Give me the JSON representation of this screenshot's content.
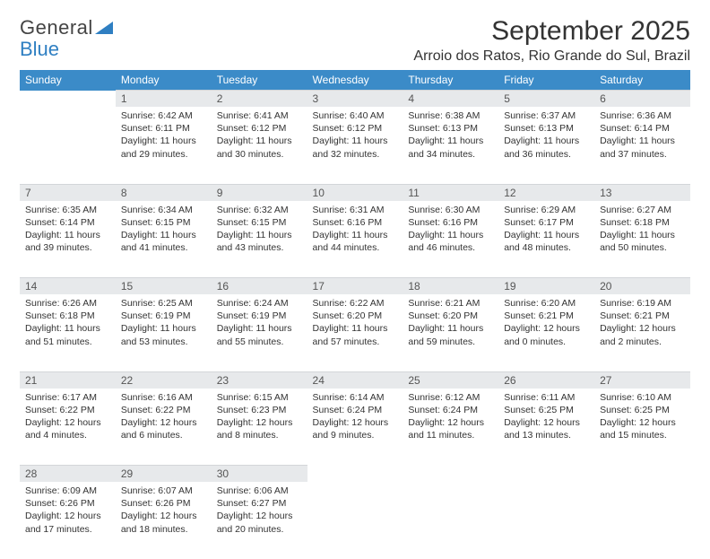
{
  "logo": {
    "text1": "General",
    "text2": "Blue"
  },
  "title": "September 2025",
  "location": "Arroio dos Ratos, Rio Grande do Sul, Brazil",
  "colors": {
    "header_bg": "#3b8bc8",
    "header_text": "#ffffff",
    "daynum_bg": "#e7e9eb",
    "daynum_text": "#555555",
    "body_text": "#333333",
    "logo_gray": "#444444",
    "logo_blue": "#2f7fc2",
    "page_bg": "#ffffff"
  },
  "fonts": {
    "title_size_pt": 22,
    "location_size_pt": 12,
    "header_size_pt": 9,
    "daynum_size_pt": 9,
    "cell_size_pt": 8
  },
  "weekdays": [
    "Sunday",
    "Monday",
    "Tuesday",
    "Wednesday",
    "Thursday",
    "Friday",
    "Saturday"
  ],
  "weeks": [
    [
      null,
      {
        "n": "1",
        "sunrise": "6:42 AM",
        "sunset": "6:11 PM",
        "daylight": "11 hours and 29 minutes."
      },
      {
        "n": "2",
        "sunrise": "6:41 AM",
        "sunset": "6:12 PM",
        "daylight": "11 hours and 30 minutes."
      },
      {
        "n": "3",
        "sunrise": "6:40 AM",
        "sunset": "6:12 PM",
        "daylight": "11 hours and 32 minutes."
      },
      {
        "n": "4",
        "sunrise": "6:38 AM",
        "sunset": "6:13 PM",
        "daylight": "11 hours and 34 minutes."
      },
      {
        "n": "5",
        "sunrise": "6:37 AM",
        "sunset": "6:13 PM",
        "daylight": "11 hours and 36 minutes."
      },
      {
        "n": "6",
        "sunrise": "6:36 AM",
        "sunset": "6:14 PM",
        "daylight": "11 hours and 37 minutes."
      }
    ],
    [
      {
        "n": "7",
        "sunrise": "6:35 AM",
        "sunset": "6:14 PM",
        "daylight": "11 hours and 39 minutes."
      },
      {
        "n": "8",
        "sunrise": "6:34 AM",
        "sunset": "6:15 PM",
        "daylight": "11 hours and 41 minutes."
      },
      {
        "n": "9",
        "sunrise": "6:32 AM",
        "sunset": "6:15 PM",
        "daylight": "11 hours and 43 minutes."
      },
      {
        "n": "10",
        "sunrise": "6:31 AM",
        "sunset": "6:16 PM",
        "daylight": "11 hours and 44 minutes."
      },
      {
        "n": "11",
        "sunrise": "6:30 AM",
        "sunset": "6:16 PM",
        "daylight": "11 hours and 46 minutes."
      },
      {
        "n": "12",
        "sunrise": "6:29 AM",
        "sunset": "6:17 PM",
        "daylight": "11 hours and 48 minutes."
      },
      {
        "n": "13",
        "sunrise": "6:27 AM",
        "sunset": "6:18 PM",
        "daylight": "11 hours and 50 minutes."
      }
    ],
    [
      {
        "n": "14",
        "sunrise": "6:26 AM",
        "sunset": "6:18 PM",
        "daylight": "11 hours and 51 minutes."
      },
      {
        "n": "15",
        "sunrise": "6:25 AM",
        "sunset": "6:19 PM",
        "daylight": "11 hours and 53 minutes."
      },
      {
        "n": "16",
        "sunrise": "6:24 AM",
        "sunset": "6:19 PM",
        "daylight": "11 hours and 55 minutes."
      },
      {
        "n": "17",
        "sunrise": "6:22 AM",
        "sunset": "6:20 PM",
        "daylight": "11 hours and 57 minutes."
      },
      {
        "n": "18",
        "sunrise": "6:21 AM",
        "sunset": "6:20 PM",
        "daylight": "11 hours and 59 minutes."
      },
      {
        "n": "19",
        "sunrise": "6:20 AM",
        "sunset": "6:21 PM",
        "daylight": "12 hours and 0 minutes."
      },
      {
        "n": "20",
        "sunrise": "6:19 AM",
        "sunset": "6:21 PM",
        "daylight": "12 hours and 2 minutes."
      }
    ],
    [
      {
        "n": "21",
        "sunrise": "6:17 AM",
        "sunset": "6:22 PM",
        "daylight": "12 hours and 4 minutes."
      },
      {
        "n": "22",
        "sunrise": "6:16 AM",
        "sunset": "6:22 PM",
        "daylight": "12 hours and 6 minutes."
      },
      {
        "n": "23",
        "sunrise": "6:15 AM",
        "sunset": "6:23 PM",
        "daylight": "12 hours and 8 minutes."
      },
      {
        "n": "24",
        "sunrise": "6:14 AM",
        "sunset": "6:24 PM",
        "daylight": "12 hours and 9 minutes."
      },
      {
        "n": "25",
        "sunrise": "6:12 AM",
        "sunset": "6:24 PM",
        "daylight": "12 hours and 11 minutes."
      },
      {
        "n": "26",
        "sunrise": "6:11 AM",
        "sunset": "6:25 PM",
        "daylight": "12 hours and 13 minutes."
      },
      {
        "n": "27",
        "sunrise": "6:10 AM",
        "sunset": "6:25 PM",
        "daylight": "12 hours and 15 minutes."
      }
    ],
    [
      {
        "n": "28",
        "sunrise": "6:09 AM",
        "sunset": "6:26 PM",
        "daylight": "12 hours and 17 minutes."
      },
      {
        "n": "29",
        "sunrise": "6:07 AM",
        "sunset": "6:26 PM",
        "daylight": "12 hours and 18 minutes."
      },
      {
        "n": "30",
        "sunrise": "6:06 AM",
        "sunset": "6:27 PM",
        "daylight": "12 hours and 20 minutes."
      },
      null,
      null,
      null,
      null
    ]
  ],
  "labels": {
    "sunrise": "Sunrise:",
    "sunset": "Sunset:",
    "daylight": "Daylight:"
  }
}
